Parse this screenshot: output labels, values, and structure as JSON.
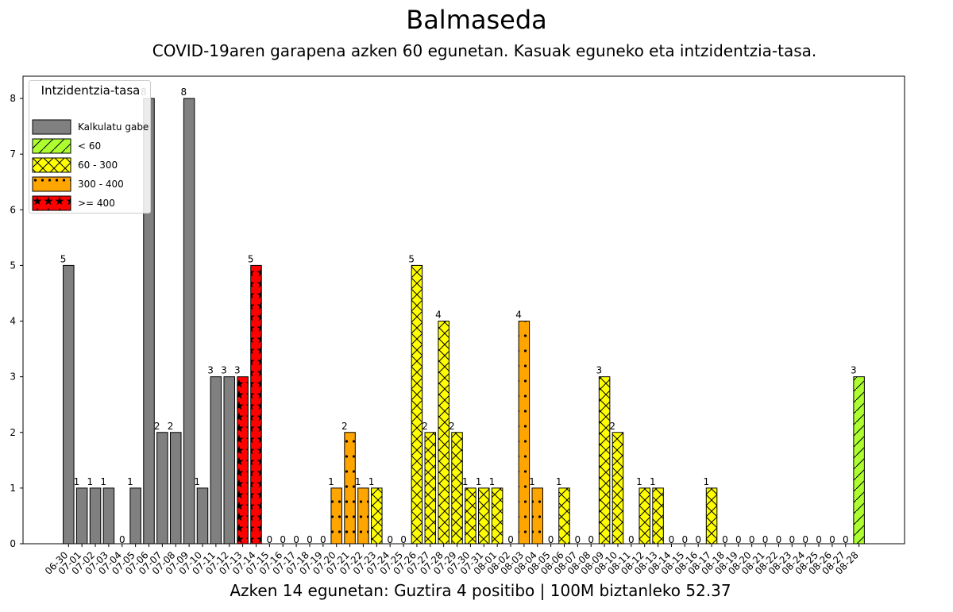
{
  "title": "Balmaseda",
  "subtitle": "COVID-19aren garapena azken 60 egunetan. Kasuak eguneko eta intzidentzia-tasa.",
  "footer": "Azken 14 egunetan: Guztira 4 positibo | 100M biztanleko 52.37",
  "legend": {
    "title": "Intzidentzia-tasa",
    "items": [
      {
        "key": "gray",
        "label": "Kalkulatu gabe",
        "color": "#808080",
        "pattern": "none"
      },
      {
        "key": "green",
        "label": "< 60",
        "color": "#adff2f",
        "pattern": "slash"
      },
      {
        "key": "yellow",
        "label": "60 - 300",
        "color": "#ffff00",
        "pattern": "x"
      },
      {
        "key": "orange",
        "label": "300 - 400",
        "color": "#ffa500",
        "pattern": "dots"
      },
      {
        "key": "red",
        "label": ">= 400",
        "color": "#ff0000",
        "pattern": "stars"
      }
    ]
  },
  "chart_data": {
    "type": "bar",
    "ylim": [
      0,
      8.4
    ],
    "yticks": [
      0,
      1,
      2,
      3,
      4,
      5,
      6,
      7,
      8
    ],
    "categories": [
      "06-30",
      "07-01",
      "07-02",
      "07-03",
      "07-04",
      "07-05",
      "07-06",
      "07-07",
      "07-08",
      "07-09",
      "07-10",
      "07-11",
      "07-12",
      "07-13",
      "07-14",
      "07-15",
      "07-16",
      "07-17",
      "07-18",
      "07-19",
      "07-20",
      "07-21",
      "07-22",
      "07-23",
      "07-24",
      "07-25",
      "07-26",
      "07-27",
      "07-28",
      "07-29",
      "07-30",
      "07-31",
      "08-01",
      "08-02",
      "08-03",
      "08-04",
      "08-05",
      "08-06",
      "08-07",
      "08-08",
      "08-09",
      "08-10",
      "08-11",
      "08-12",
      "08-13",
      "08-14",
      "08-15",
      "08-16",
      "08-17",
      "08-18",
      "08-19",
      "08-20",
      "08-21",
      "08-22",
      "08-23",
      "08-24",
      "08-25",
      "08-26",
      "08-27",
      "08-28"
    ],
    "values": [
      5,
      1,
      1,
      1,
      0,
      1,
      8,
      2,
      2,
      8,
      1,
      3,
      3,
      3,
      5,
      0,
      0,
      0,
      0,
      0,
      1,
      2,
      1,
      1,
      0,
      0,
      5,
      2,
      4,
      2,
      1,
      1,
      1,
      0,
      4,
      1,
      0,
      1,
      0,
      0,
      3,
      2,
      0,
      1,
      1,
      0,
      0,
      0,
      1,
      0,
      0,
      0,
      0,
      0,
      0,
      0,
      0,
      0,
      0,
      3
    ],
    "incidence_class": [
      "gray",
      "gray",
      "gray",
      "gray",
      "gray",
      "gray",
      "gray",
      "gray",
      "gray",
      "gray",
      "gray",
      "gray",
      "gray",
      "red",
      "red",
      "red",
      "red",
      "red",
      "red",
      "red",
      "orange",
      "orange",
      "orange",
      "yellow",
      "yellow",
      "yellow",
      "yellow",
      "yellow",
      "yellow",
      "yellow",
      "yellow",
      "yellow",
      "yellow",
      "orange",
      "orange",
      "orange",
      "yellow",
      "yellow",
      "yellow",
      "yellow",
      "yellow",
      "yellow",
      "yellow",
      "yellow",
      "yellow",
      "yellow",
      "yellow",
      "yellow",
      "yellow",
      "yellow",
      "yellow",
      "yellow",
      "yellow",
      "yellow",
      "yellow",
      "yellow",
      "yellow",
      "yellow",
      "yellow",
      "green"
    ]
  }
}
